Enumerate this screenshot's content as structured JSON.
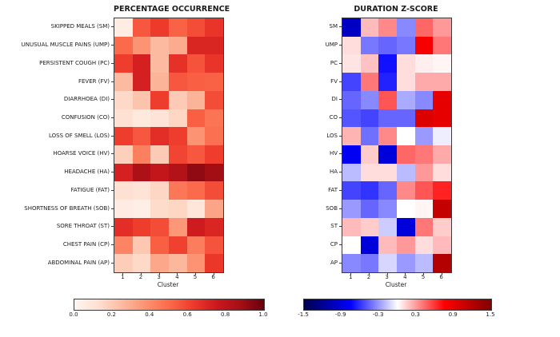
{
  "figure": {
    "background": "#ffffff",
    "text_color": "#1a1a1a"
  },
  "chart_data": [
    {
      "type": "heatmap",
      "title": "PERCENTAGE OCCURRENCE",
      "xlabel": "Cluster",
      "x_ticks": [
        "1",
        "2",
        "3",
        "4",
        "5",
        "6"
      ],
      "row_labels": [
        "SKIPPED MEALS (SM)",
        "UNUSUAL MUSCLE PAINS (UMP)",
        "PERSISTENT COUGH (PC)",
        "FEVER (FV)",
        "DIARRHOEA (DI)",
        "CONFUSION (CO)",
        "LOSS OF SMELL (LOS)",
        "HOARSE VOICE (HV)",
        "HEADACHE (HA)",
        "FATIGUE (FAT)",
        "SHORTNESS OF BREATH (SOB)",
        "SORE THROAT (ST)",
        "CHEST PAIN (CP)",
        "ABDOMINAL PAIN (AP)"
      ],
      "values": [
        [
          0.05,
          0.55,
          0.63,
          0.52,
          0.58,
          0.65
        ],
        [
          0.5,
          0.37,
          0.25,
          0.3,
          0.7,
          0.7
        ],
        [
          0.62,
          0.72,
          0.25,
          0.66,
          0.56,
          0.65
        ],
        [
          0.25,
          0.72,
          0.27,
          0.55,
          0.53,
          0.52
        ],
        [
          0.15,
          0.22,
          0.62,
          0.2,
          0.27,
          0.58
        ],
        [
          0.12,
          0.07,
          0.1,
          0.16,
          0.53,
          0.47
        ],
        [
          0.62,
          0.55,
          0.67,
          0.62,
          0.37,
          0.48
        ],
        [
          0.18,
          0.43,
          0.2,
          0.6,
          0.55,
          0.62
        ],
        [
          0.72,
          0.85,
          0.78,
          0.83,
          0.92,
          0.88
        ],
        [
          0.12,
          0.11,
          0.16,
          0.46,
          0.5,
          0.58
        ],
        [
          0.06,
          0.04,
          0.14,
          0.16,
          0.09,
          0.32
        ],
        [
          0.67,
          0.62,
          0.58,
          0.36,
          0.74,
          0.7
        ],
        [
          0.42,
          0.21,
          0.53,
          0.61,
          0.44,
          0.56
        ],
        [
          0.19,
          0.15,
          0.31,
          0.26,
          0.37,
          0.64
        ]
      ],
      "vmin": 0.0,
      "vmax": 1.0,
      "colormap": "Reds",
      "colorbar_ticks": [
        "0.0",
        "0.2",
        "0.4",
        "0.6",
        "0.8",
        "1.0"
      ]
    },
    {
      "type": "heatmap",
      "title": "DURATION Z-SCORE",
      "xlabel": "Cluster",
      "x_ticks": [
        "1",
        "2",
        "3",
        "4",
        "5",
        "6"
      ],
      "row_labels": [
        "SM",
        "UMP",
        "PC",
        "FV",
        "DI",
        "CO",
        "LOS",
        "HV",
        "HA",
        "FAT",
        "SOB",
        "ST",
        "CP",
        "AP"
      ],
      "values": [
        [
          -1.0,
          0.2,
          0.35,
          -0.35,
          0.45,
          0.3
        ],
        [
          0.1,
          -0.4,
          -0.45,
          -0.4,
          0.8,
          0.4
        ],
        [
          0.08,
          0.18,
          -0.7,
          0.1,
          0.05,
          0.03
        ],
        [
          -0.55,
          0.4,
          -0.65,
          0.1,
          0.25,
          0.25
        ],
        [
          -0.45,
          -0.35,
          0.5,
          -0.25,
          -0.35,
          0.9
        ],
        [
          -0.5,
          -0.55,
          -0.45,
          -0.45,
          0.95,
          0.9
        ],
        [
          0.22,
          -0.42,
          0.35,
          0.0,
          -0.3,
          -0.05
        ],
        [
          -0.8,
          0.15,
          -0.9,
          0.45,
          0.4,
          0.25
        ],
        [
          -0.2,
          0.1,
          0.1,
          -0.2,
          0.3,
          0.1
        ],
        [
          -0.55,
          -0.6,
          -0.45,
          0.35,
          0.5,
          0.65
        ],
        [
          -0.3,
          -0.45,
          -0.35,
          0.0,
          0.03,
          1.1
        ],
        [
          0.2,
          0.15,
          -0.15,
          -0.9,
          0.4,
          0.15
        ],
        [
          0.0,
          -0.9,
          0.2,
          0.3,
          0.1,
          0.2
        ],
        [
          -0.35,
          -0.4,
          -0.12,
          -0.3,
          -0.2,
          1.2
        ]
      ],
      "vmin": -1.5,
      "vmax": 1.5,
      "colormap": "seismic",
      "colorbar_ticks": [
        "-1.5",
        "-0.9",
        "-0.3",
        "0.3",
        "0.9",
        "1.5"
      ]
    }
  ],
  "colormaps": {
    "Reds": [
      {
        "t": 0.0,
        "c": "#fff5f0"
      },
      {
        "t": 0.125,
        "c": "#fee0d2"
      },
      {
        "t": 0.25,
        "c": "#fcbba1"
      },
      {
        "t": 0.375,
        "c": "#fc9272"
      },
      {
        "t": 0.5,
        "c": "#fb6a4a"
      },
      {
        "t": 0.625,
        "c": "#ef3b2c"
      },
      {
        "t": 0.75,
        "c": "#cb181d"
      },
      {
        "t": 0.875,
        "c": "#a50f15"
      },
      {
        "t": 1.0,
        "c": "#67000d"
      }
    ],
    "seismic": [
      {
        "t": 0.0,
        "c": "#00004d"
      },
      {
        "t": 0.25,
        "c": "#0000ff"
      },
      {
        "t": 0.5,
        "c": "#ffffff"
      },
      {
        "t": 0.75,
        "c": "#ff0000"
      },
      {
        "t": 1.0,
        "c": "#800000"
      }
    ]
  }
}
